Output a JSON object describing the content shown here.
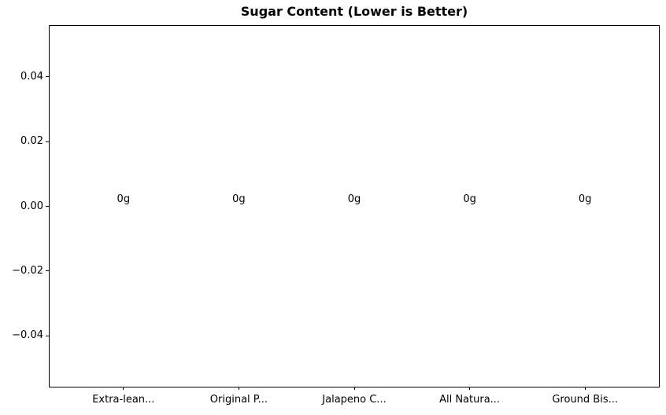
{
  "figure": {
    "background_color": "#ffffff",
    "text_color": "#000000",
    "axes_border_color": "#000000"
  },
  "chart_data": {
    "type": "bar",
    "title": "Sugar Content (Lower is Better)",
    "categories": [
      "Extra-lean...",
      "Original P...",
      "Jalapeno C...",
      "All Natura...",
      "Ground Bis..."
    ],
    "values": [
      0,
      0,
      0,
      0,
      0
    ],
    "bar_labels": [
      "0g",
      "0g",
      "0g",
      "0g",
      "0g"
    ],
    "xlabel": "",
    "ylabel": "",
    "xlim": [
      -0.64,
      4.64
    ],
    "ylim": [
      -0.0557,
      0.0557
    ],
    "bar_width": 0.8,
    "yticks": [
      {
        "value": 0.04,
        "label": "0.04"
      },
      {
        "value": 0.02,
        "label": "0.02"
      },
      {
        "value": 0,
        "label": "0.00"
      },
      {
        "value": -0.02,
        "label": "−0.02"
      },
      {
        "value": -0.04,
        "label": "−0.04"
      }
    ],
    "grid": false,
    "legend": null
  }
}
